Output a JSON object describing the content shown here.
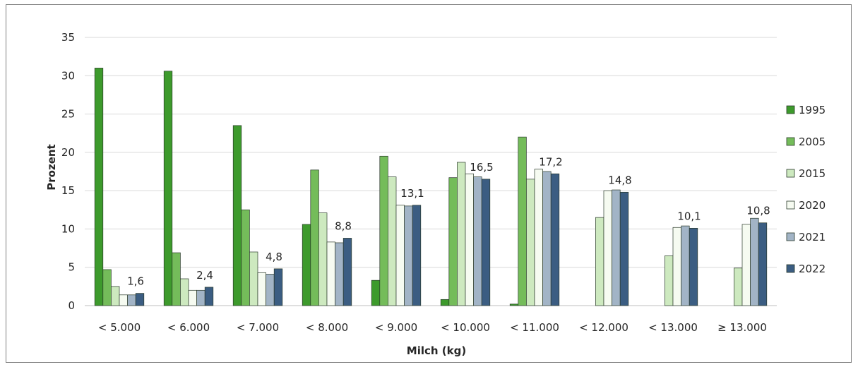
{
  "chart_data": {
    "type": "bar",
    "title": "",
    "xlabel": "Milch (kg)",
    "ylabel": "Prozent",
    "ylim": [
      0,
      35
    ],
    "yticks": [
      "0",
      "5",
      "10",
      "15",
      "20",
      "25",
      "30",
      "35"
    ],
    "grid": true,
    "legend_position": "right",
    "categories": [
      "< 5.000",
      "< 6.000",
      "< 7.000",
      "< 8.000",
      "< 9.000",
      "< 10.000",
      "< 11.000",
      "< 12.000",
      "< 13.000",
      "≥ 13.000"
    ],
    "series": [
      {
        "name": "1995",
        "color": "#3d9a2c",
        "values": [
          31.0,
          30.6,
          23.5,
          10.6,
          3.3,
          0.8,
          0.2,
          null,
          null,
          null
        ]
      },
      {
        "name": "2005",
        "color": "#74bc5a",
        "values": [
          4.7,
          6.9,
          12.5,
          17.7,
          19.5,
          16.7,
          22.0,
          null,
          null,
          null
        ]
      },
      {
        "name": "2015",
        "color": "#cde9bf",
        "values": [
          2.5,
          3.5,
          7.0,
          12.1,
          16.8,
          18.7,
          16.5,
          11.5,
          6.5,
          4.9
        ]
      },
      {
        "name": "2020",
        "color": "#f6fbf1",
        "values": [
          1.4,
          2.0,
          4.3,
          8.3,
          13.1,
          17.2,
          17.8,
          15.0,
          10.2,
          10.6
        ]
      },
      {
        "name": "2021",
        "color": "#a2b4c6",
        "values": [
          1.4,
          2.0,
          4.1,
          8.2,
          13.0,
          16.8,
          17.5,
          15.1,
          10.4,
          11.4
        ]
      },
      {
        "name": "2022",
        "color": "#3b5d82",
        "values": [
          1.6,
          2.4,
          4.8,
          8.8,
          13.1,
          16.5,
          17.2,
          14.8,
          10.1,
          10.8
        ]
      }
    ],
    "data_labels": [
      "1,6",
      "2,4",
      "4,8",
      "8,8",
      "13,1",
      "16,5",
      "17,2",
      "14,8",
      "10,1",
      "10,8"
    ]
  }
}
